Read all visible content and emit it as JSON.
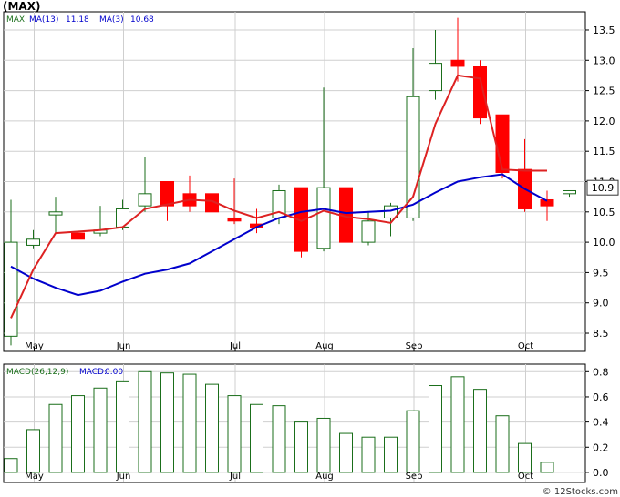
{
  "header": {
    "ticker": "(MAX)",
    "legend_symbol": "MAX",
    "ma13_label": "MA(13)",
    "ma13_value": "11.18",
    "ma3_label": "MA(3)",
    "ma3_value": "10.68",
    "last_price": "10.9"
  },
  "macd_header": {
    "label": "MACD(26,12,9)",
    "macd_label": "MACD:",
    "macd_value": "0.00"
  },
  "watermark": "© 12Stocks.com",
  "colors": {
    "up": "#1a6e1a",
    "down": "#ff0000",
    "ma13": "#0000cc",
    "ma3": "#dd2222",
    "macd_bar": "#1a6e1a",
    "grid": "#cfcfcf",
    "background": "#ffffff"
  },
  "chart_data": [
    {
      "type": "candlestick",
      "x_ticks": [
        {
          "label": "May",
          "index": 1
        },
        {
          "label": "Jun",
          "index": 5
        },
        {
          "label": "Jul",
          "index": 10
        },
        {
          "label": "Aug",
          "index": 14
        },
        {
          "label": "Sep",
          "index": 18
        },
        {
          "label": "Oct",
          "index": 23
        }
      ],
      "y_ticks": [
        8.5,
        9.0,
        9.5,
        10.0,
        10.5,
        11.0,
        11.5,
        12.0,
        12.5,
        13.0,
        13.5
      ],
      "ylim": [
        8.2,
        13.8
      ],
      "grid": true,
      "candles": [
        {
          "open": 8.45,
          "high": 10.7,
          "low": 8.3,
          "close": 10.0
        },
        {
          "open": 9.95,
          "high": 10.2,
          "low": 9.9,
          "close": 10.05
        },
        {
          "open": 10.45,
          "high": 10.75,
          "low": 10.15,
          "close": 10.5
        },
        {
          "open": 10.15,
          "high": 10.35,
          "low": 9.8,
          "close": 10.05
        },
        {
          "open": 10.15,
          "high": 10.6,
          "low": 10.1,
          "close": 10.2
        },
        {
          "open": 10.25,
          "high": 10.7,
          "low": 10.2,
          "close": 10.55
        },
        {
          "open": 10.6,
          "high": 11.4,
          "low": 10.5,
          "close": 10.8
        },
        {
          "open": 11.0,
          "high": 11.0,
          "low": 10.35,
          "close": 10.6
        },
        {
          "open": 10.8,
          "high": 11.1,
          "low": 10.5,
          "close": 10.6
        },
        {
          "open": 10.8,
          "high": 10.8,
          "low": 10.45,
          "close": 10.5
        },
        {
          "open": 10.4,
          "high": 11.05,
          "low": 10.3,
          "close": 10.35
        },
        {
          "open": 10.3,
          "high": 10.55,
          "low": 10.15,
          "close": 10.25
        },
        {
          "open": 10.4,
          "high": 10.95,
          "low": 10.3,
          "close": 10.85
        },
        {
          "open": 10.9,
          "high": 10.9,
          "low": 9.75,
          "close": 9.85
        },
        {
          "open": 9.9,
          "high": 12.55,
          "low": 9.85,
          "close": 10.9
        },
        {
          "open": 10.9,
          "high": 10.9,
          "low": 9.25,
          "close": 10.0
        },
        {
          "open": 10.0,
          "high": 10.5,
          "low": 9.95,
          "close": 10.35
        },
        {
          "open": 10.4,
          "high": 10.65,
          "low": 10.1,
          "close": 10.6
        },
        {
          "open": 10.4,
          "high": 13.2,
          "low": 10.35,
          "close": 12.4
        },
        {
          "open": 12.5,
          "high": 13.5,
          "low": 12.35,
          "close": 12.95
        },
        {
          "open": 13.0,
          "high": 13.7,
          "low": 12.65,
          "close": 12.9
        },
        {
          "open": 12.9,
          "high": 13.0,
          "low": 11.95,
          "close": 12.05
        },
        {
          "open": 12.1,
          "high": 12.1,
          "low": 11.05,
          "close": 11.15
        },
        {
          "open": 11.2,
          "high": 11.7,
          "low": 10.5,
          "close": 10.55
        },
        {
          "open": 10.7,
          "high": 10.85,
          "low": 10.35,
          "close": 10.6
        },
        {
          "open": 10.8,
          "high": 10.85,
          "low": 10.75,
          "close": 10.85
        }
      ],
      "ma13": [
        {
          "i": 0,
          "v": 8.75
        },
        {
          "i": 1,
          "v": 9.55
        },
        {
          "i": 2,
          "v": 10.15
        },
        {
          "i": 4,
          "v": 10.2
        },
        {
          "i": 5,
          "v": 10.25
        },
        {
          "i": 6,
          "v": 10.55
        },
        {
          "i": 8,
          "v": 10.7
        },
        {
          "i": 9,
          "v": 10.68
        },
        {
          "i": 10,
          "v": 10.52
        },
        {
          "i": 11,
          "v": 10.4
        },
        {
          "i": 12,
          "v": 10.5
        },
        {
          "i": 13,
          "v": 10.35
        },
        {
          "i": 14,
          "v": 10.52
        },
        {
          "i": 15,
          "v": 10.42
        },
        {
          "i": 16,
          "v": 10.38
        },
        {
          "i": 17,
          "v": 10.32
        },
        {
          "i": 18,
          "v": 10.75
        },
        {
          "i": 19,
          "v": 11.95
        },
        {
          "i": 20,
          "v": 12.75
        },
        {
          "i": 21,
          "v": 12.7
        },
        {
          "i": 22,
          "v": 11.2
        },
        {
          "i": 23,
          "v": 11.18
        },
        {
          "i": 24,
          "v": 11.18
        }
      ],
      "ma3": [
        {
          "i": 0,
          "v": 9.6
        },
        {
          "i": 1,
          "v": 9.4
        },
        {
          "i": 2,
          "v": 9.25
        },
        {
          "i": 3,
          "v": 9.13
        },
        {
          "i": 4,
          "v": 9.2
        },
        {
          "i": 5,
          "v": 9.35
        },
        {
          "i": 6,
          "v": 9.48
        },
        {
          "i": 7,
          "v": 9.55
        },
        {
          "i": 8,
          "v": 9.65
        },
        {
          "i": 9,
          "v": 9.85
        },
        {
          "i": 10,
          "v": 10.05
        },
        {
          "i": 11,
          "v": 10.25
        },
        {
          "i": 12,
          "v": 10.4
        },
        {
          "i": 13,
          "v": 10.5
        },
        {
          "i": 14,
          "v": 10.55
        },
        {
          "i": 15,
          "v": 10.48
        },
        {
          "i": 16,
          "v": 10.5
        },
        {
          "i": 17,
          "v": 10.52
        },
        {
          "i": 18,
          "v": 10.62
        },
        {
          "i": 19,
          "v": 10.82
        },
        {
          "i": 20,
          "v": 11.0
        },
        {
          "i": 21,
          "v": 11.07
        },
        {
          "i": 22,
          "v": 11.12
        },
        {
          "i": 23,
          "v": 10.88
        },
        {
          "i": 24,
          "v": 10.68
        }
      ]
    },
    {
      "type": "bar",
      "y_ticks": [
        0.0,
        0.2,
        0.4,
        0.6,
        0.8
      ],
      "ylim": [
        -0.08,
        0.86
      ],
      "grid": true,
      "values": [
        0.11,
        0.34,
        0.54,
        0.61,
        0.67,
        0.72,
        0.8,
        0.79,
        0.78,
        0.7,
        0.61,
        0.54,
        0.53,
        0.4,
        0.43,
        0.31,
        0.28,
        0.28,
        0.49,
        0.69,
        0.76,
        0.66,
        0.45,
        0.23,
        0.08
      ]
    }
  ]
}
